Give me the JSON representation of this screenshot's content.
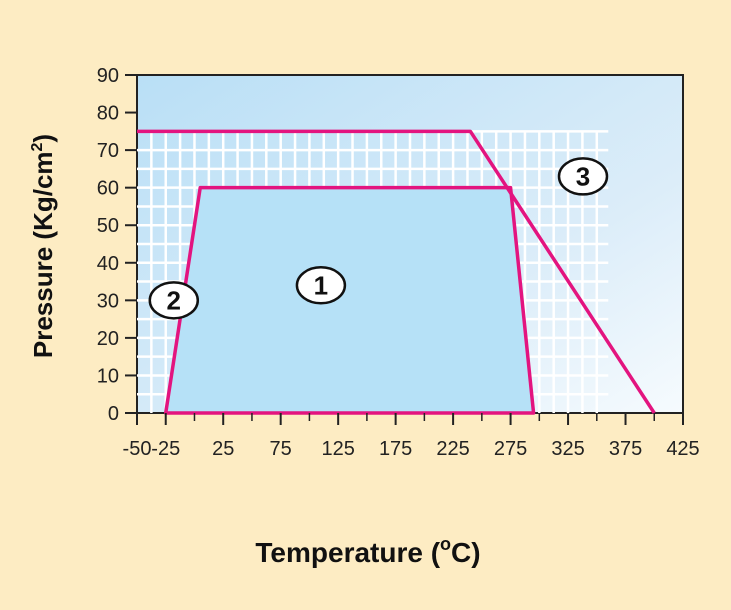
{
  "chart_data": {
    "type": "area",
    "title": "",
    "xlabel": "Temperature (",
    "xlabel_unit": "C)",
    "xlabel_superscript": "o",
    "ylabel": "Pressure (Kg/cm",
    "ylabel_superscript": "2",
    "ylabel_close": ")",
    "xlim": [
      -50,
      425
    ],
    "ylim": [
      0,
      90
    ],
    "x_ticks": [
      -50,
      -25,
      25,
      75,
      125,
      175,
      225,
      275,
      325,
      375,
      425
    ],
    "x_tick_labels": [
      "-50",
      "-25",
      "25",
      "75",
      "125",
      "175",
      "225",
      "275",
      "325",
      "375",
      "425"
    ],
    "x_minor_ticks": [
      0,
      50,
      100,
      150,
      200,
      250,
      300,
      350,
      400
    ],
    "y_ticks": [
      0,
      10,
      20,
      30,
      40,
      50,
      60,
      70,
      80,
      90
    ],
    "grid": true,
    "grid_area": {
      "x": [
        -50,
        360
      ],
      "y": [
        0,
        75
      ]
    },
    "zones": [
      {
        "label": "1",
        "fill": "#b6e1f7",
        "stroke": "#e3147f",
        "points": [
          [
            -25,
            0
          ],
          [
            5,
            60
          ],
          [
            275,
            60
          ],
          [
            295,
            0
          ]
        ],
        "label_at": [
          110,
          34
        ]
      },
      {
        "label": "2",
        "stroke": "#e3147f",
        "points": [
          [
            -50,
            75
          ],
          [
            240,
            75
          ],
          [
            400,
            0
          ]
        ],
        "label_at": [
          -18,
          30
        ]
      },
      {
        "label": "3",
        "label_at": [
          338,
          63
        ]
      }
    ],
    "colors": {
      "page_background": "#fdecc3",
      "plot_background_light": "#eef7fc",
      "plot_background_dark": "#b9dff6",
      "grid": "#ffffff",
      "outline": "#e3147f",
      "axis": "#222222"
    }
  }
}
